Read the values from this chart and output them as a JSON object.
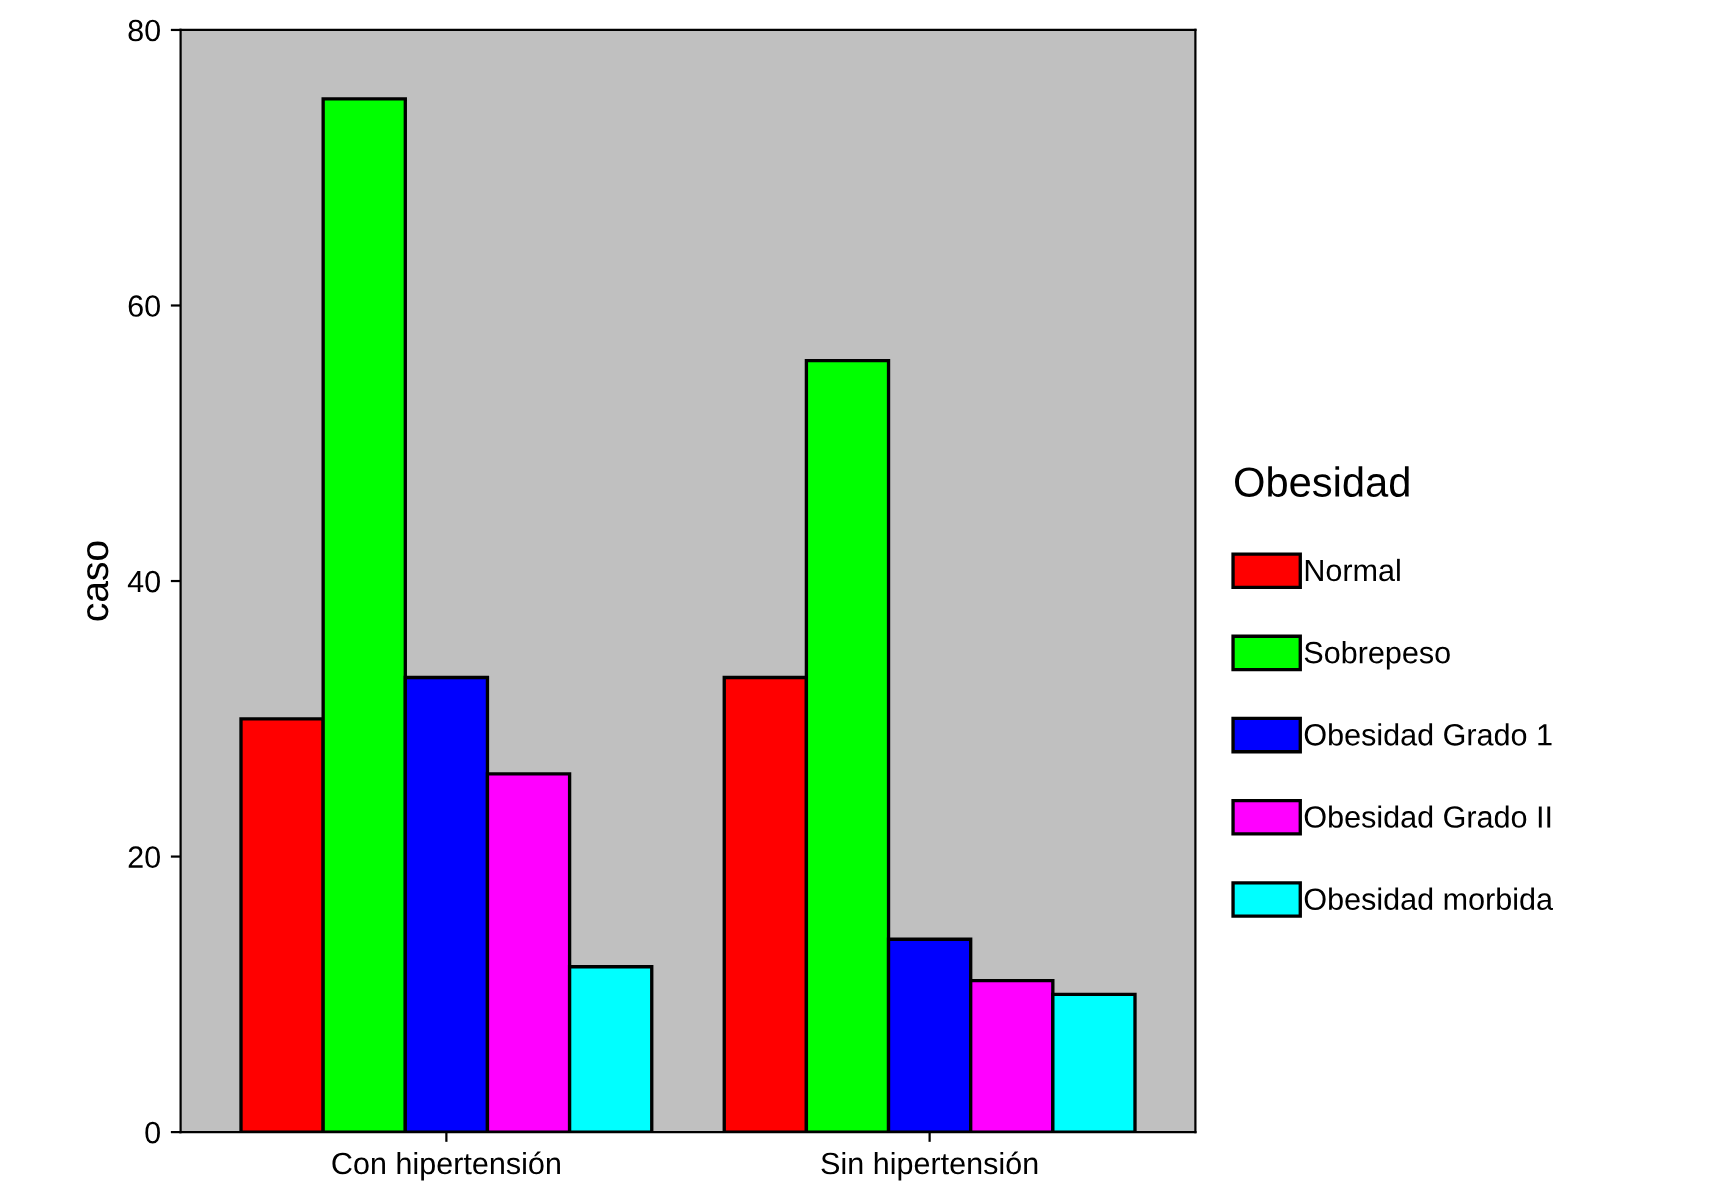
{
  "chart_data": {
    "type": "bar",
    "ylabel": "caso",
    "legend_title": "Obesidad",
    "categories": [
      "Con hipertensión",
      "Sin hipertensión"
    ],
    "series": [
      {
        "name": "Normal",
        "color": "#ff0000",
        "values": [
          30,
          33
        ]
      },
      {
        "name": "Sobrepeso",
        "color": "#00ff00",
        "values": [
          75,
          56
        ]
      },
      {
        "name": "Obesidad Grado 1",
        "color": "#0000ff",
        "values": [
          33,
          14
        ]
      },
      {
        "name": "Obesidad Grado II",
        "color": "#ff00ff",
        "values": [
          26,
          11
        ]
      },
      {
        "name": "Obesidad morbida",
        "color": "#00ffff",
        "values": [
          12,
          10
        ]
      }
    ],
    "ylim": [
      0,
      80
    ],
    "yticks": [
      0,
      20,
      40,
      60,
      80
    ],
    "grid": false,
    "legend": "right"
  }
}
